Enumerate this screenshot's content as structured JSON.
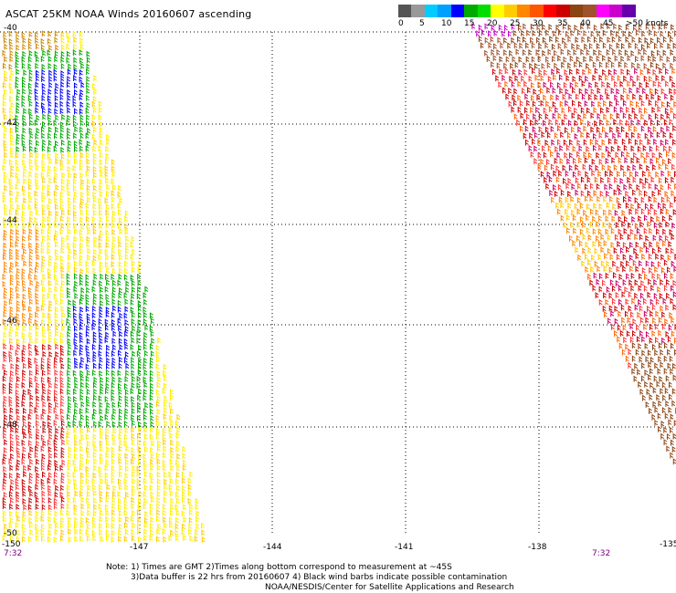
{
  "title": "ASCAT 25KM NOAA Winds 20160607 ascending",
  "colorbar": {
    "colors": [
      "#555555",
      "#999999",
      "#00ccff",
      "#00a0ff",
      "#0000ff",
      "#00aa00",
      "#00dd00",
      "#ffff00",
      "#ffcc00",
      "#ff8800",
      "#ff5500",
      "#ff0000",
      "#cc0000",
      "#8b4513",
      "#a0522d",
      "#ff00ff",
      "#cc00cc",
      "#6600aa"
    ],
    "labels": [
      "0",
      "5",
      "10",
      "15",
      "20",
      "25",
      "30",
      "35",
      "40",
      "45",
      ">50 knots"
    ]
  },
  "lat_labels": [
    "-40",
    "-42",
    "-44",
    "-46",
    "-48",
    "-50"
  ],
  "lon_labels": [
    "-150",
    "-147",
    "-144",
    "-141",
    "-138",
    "-135"
  ],
  "times": [
    "7:32",
    "7:32"
  ],
  "notes": {
    "line1": "Note: 1) Times are GMT 2)Times along bottom correspond to measurement at ~45S",
    "line2": "3)Data buffer is 22 hrs from 20160607 4) Black wind barbs indicate possible contamination",
    "line3": "NOAA/NESDIS/Center for Satellite Applications and Research"
  }
}
